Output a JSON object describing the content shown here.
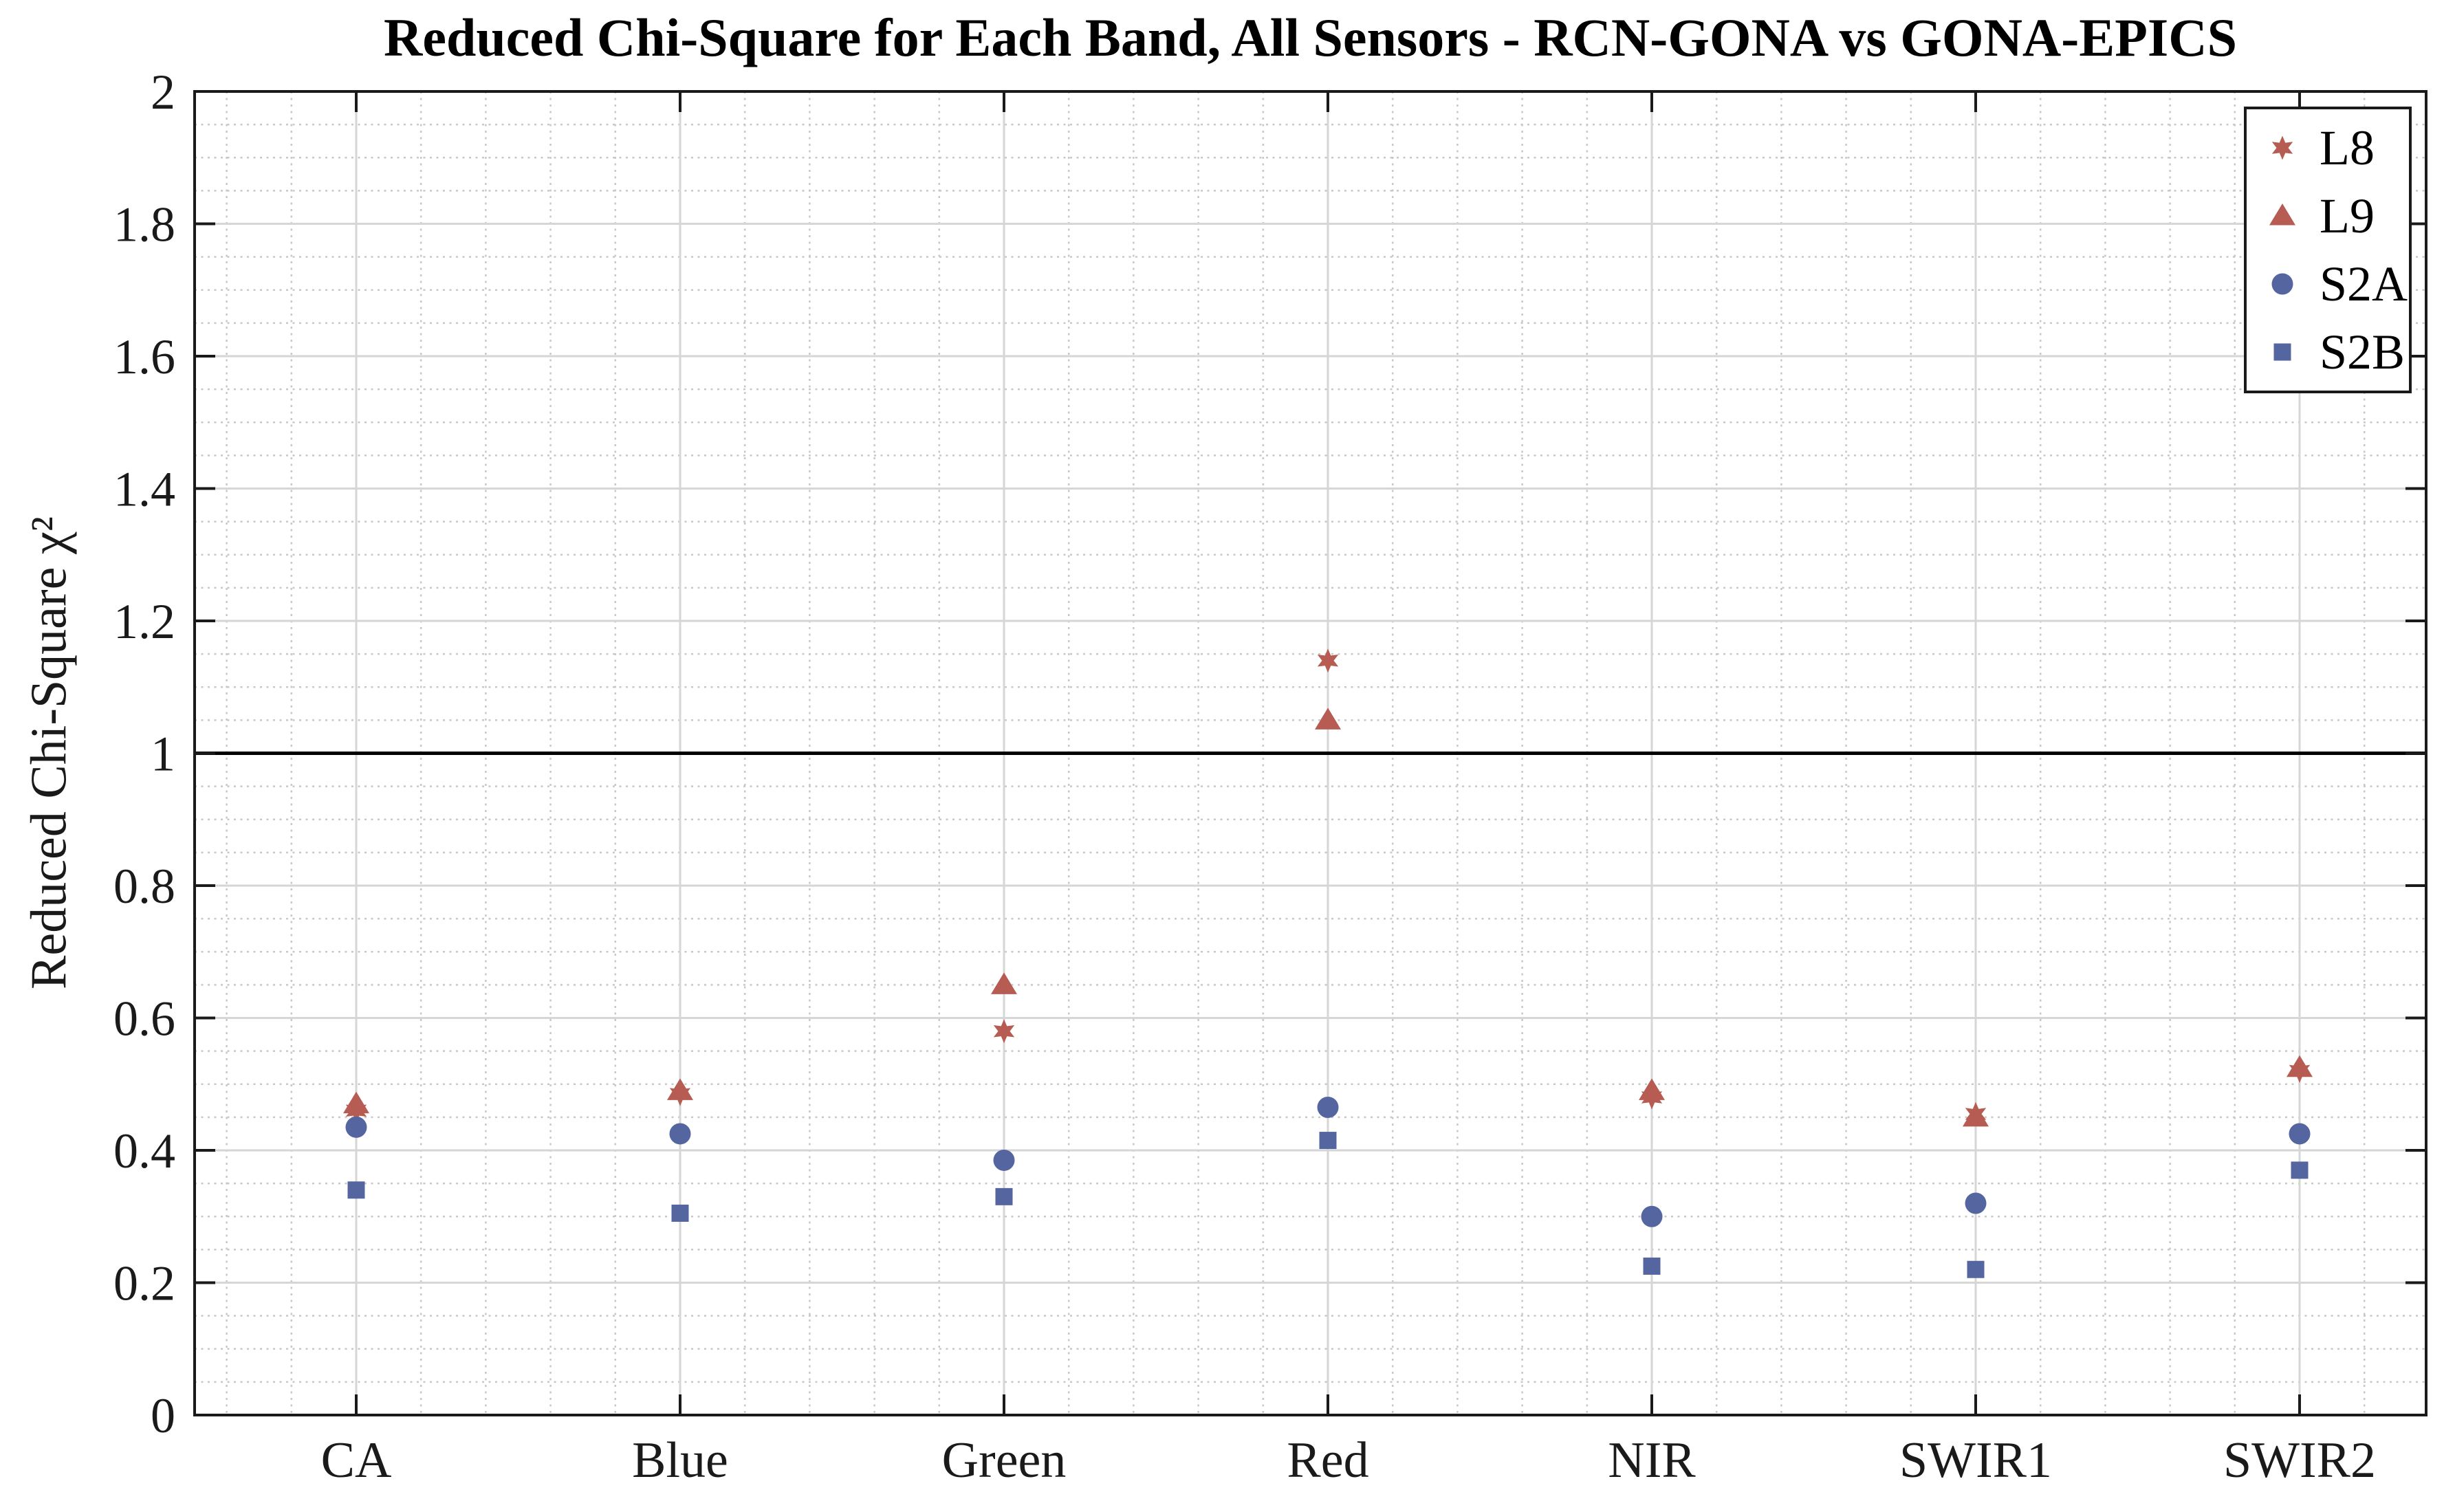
{
  "chart_data": {
    "type": "scatter",
    "title": "Reduced Chi-Square for Each Band, All Sensors - RCN-GONA vs GONA-EPICS",
    "xlabel": "",
    "ylabel": "Reduced Chi-Square χ²",
    "categories": [
      "CA",
      "Blue",
      "Green",
      "Red",
      "NIR",
      "SWIR1",
      "SWIR2"
    ],
    "series": [
      {
        "name": "L8",
        "marker": "star6",
        "color": "#b65c52",
        "values": [
          0.46,
          0.485,
          0.58,
          1.14,
          0.48,
          0.455,
          0.52
        ]
      },
      {
        "name": "L9",
        "marker": "triangle",
        "color": "#b65c52",
        "values": [
          0.47,
          0.49,
          0.65,
          1.05,
          0.49,
          0.45,
          0.525
        ]
      },
      {
        "name": "S2A",
        "marker": "circle",
        "color": "#5565a0",
        "values": [
          0.435,
          0.425,
          0.385,
          0.465,
          0.3,
          0.32,
          0.425
        ]
      },
      {
        "name": "S2B",
        "marker": "square",
        "color": "#5565a0",
        "values": [
          0.34,
          0.305,
          0.33,
          0.415,
          0.225,
          0.22,
          0.37
        ]
      }
    ],
    "ylim": [
      0,
      2
    ],
    "ytick_labels": [
      "0",
      "0.2",
      "0.4",
      "0.6",
      "0.8",
      "1",
      "1.2",
      "1.4",
      "1.6",
      "1.8",
      "2"
    ],
    "ytick_step": 0.2,
    "yminor_step": 0.05,
    "reference_line_y": 1,
    "grid": "major-solid + minor-dotted, x and y",
    "legend_position": "top-right",
    "colors": {
      "landsat_series": "#b65c52",
      "sentinel_series": "#5565a0",
      "reference_line": "#000000",
      "grid_major": "#d6d6d6",
      "grid_minor": "#c8c8c8",
      "axis_frame": "#1a1a1a"
    }
  }
}
